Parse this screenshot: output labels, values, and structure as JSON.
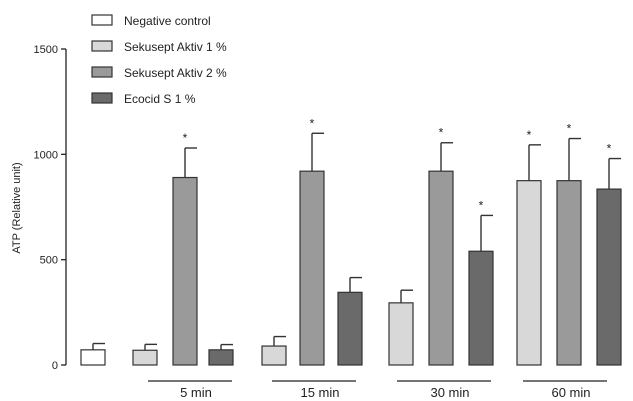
{
  "chart_data": {
    "type": "bar",
    "title": "",
    "xlabel": "",
    "ylabel": "ATP (Relative unit)",
    "ylim": [
      0,
      1500
    ],
    "yticks": [
      "0",
      "500",
      "1000",
      "1500"
    ],
    "legend_position": "top-left",
    "grid": false,
    "groups": [
      {
        "label": "5 min",
        "bars": [
          {
            "series": "Negative control",
            "value": 72,
            "error": 30,
            "star": ""
          },
          {
            "series": "Sekusept Aktiv 1 %",
            "value": 70,
            "error": 28,
            "star": ""
          },
          {
            "series": "Sekusept Aktiv 2 %",
            "value": 890,
            "error": 140,
            "star": "*"
          },
          {
            "series": "Ecocid S 1 %",
            "value": 72,
            "error": 25,
            "star": ""
          }
        ]
      },
      {
        "label": "15 min",
        "bars": [
          {
            "series": "Negative control",
            "value": 0,
            "error": 0,
            "star": ""
          },
          {
            "series": "Sekusept Aktiv 1 %",
            "value": 90,
            "error": 45,
            "star": ""
          },
          {
            "series": "Sekusept Aktiv 2 %",
            "value": 920,
            "error": 180,
            "star": "*"
          },
          {
            "series": "Ecocid S 1 %",
            "value": 345,
            "error": 70,
            "star": ""
          }
        ]
      },
      {
        "label": "30 min",
        "bars": [
          {
            "series": "Negative control",
            "value": 0,
            "error": 0,
            "star": ""
          },
          {
            "series": "Sekusept Aktiv 1 %",
            "value": 295,
            "error": 60,
            "star": ""
          },
          {
            "series": "Sekusept Aktiv 2 %",
            "value": 920,
            "error": 135,
            "star": "*"
          },
          {
            "series": "Ecocid S 1 %",
            "value": 540,
            "error": 170,
            "star": "*"
          }
        ]
      },
      {
        "label": "60 min",
        "bars": [
          {
            "series": "Negative control",
            "value": 0,
            "error": 0,
            "star": ""
          },
          {
            "series": "Sekusept Aktiv 1 %",
            "value": 875,
            "error": 170,
            "star": "*"
          },
          {
            "series": "Sekusept Aktiv 2 %",
            "value": 875,
            "error": 200,
            "star": "*"
          },
          {
            "series": "Ecocid S 1 %",
            "value": 835,
            "error": 145,
            "star": "*"
          }
        ]
      }
    ],
    "series": [
      {
        "name": "Negative control",
        "color": "#ffffff"
      },
      {
        "name": "Sekusept Aktiv 1 %",
        "color": "#d8d8d8"
      },
      {
        "name": "Sekusept Aktiv 2 %",
        "color": "#9a9a9a"
      },
      {
        "name": "Ecocid S 1 %",
        "color": "#6a6a6a"
      }
    ]
  }
}
